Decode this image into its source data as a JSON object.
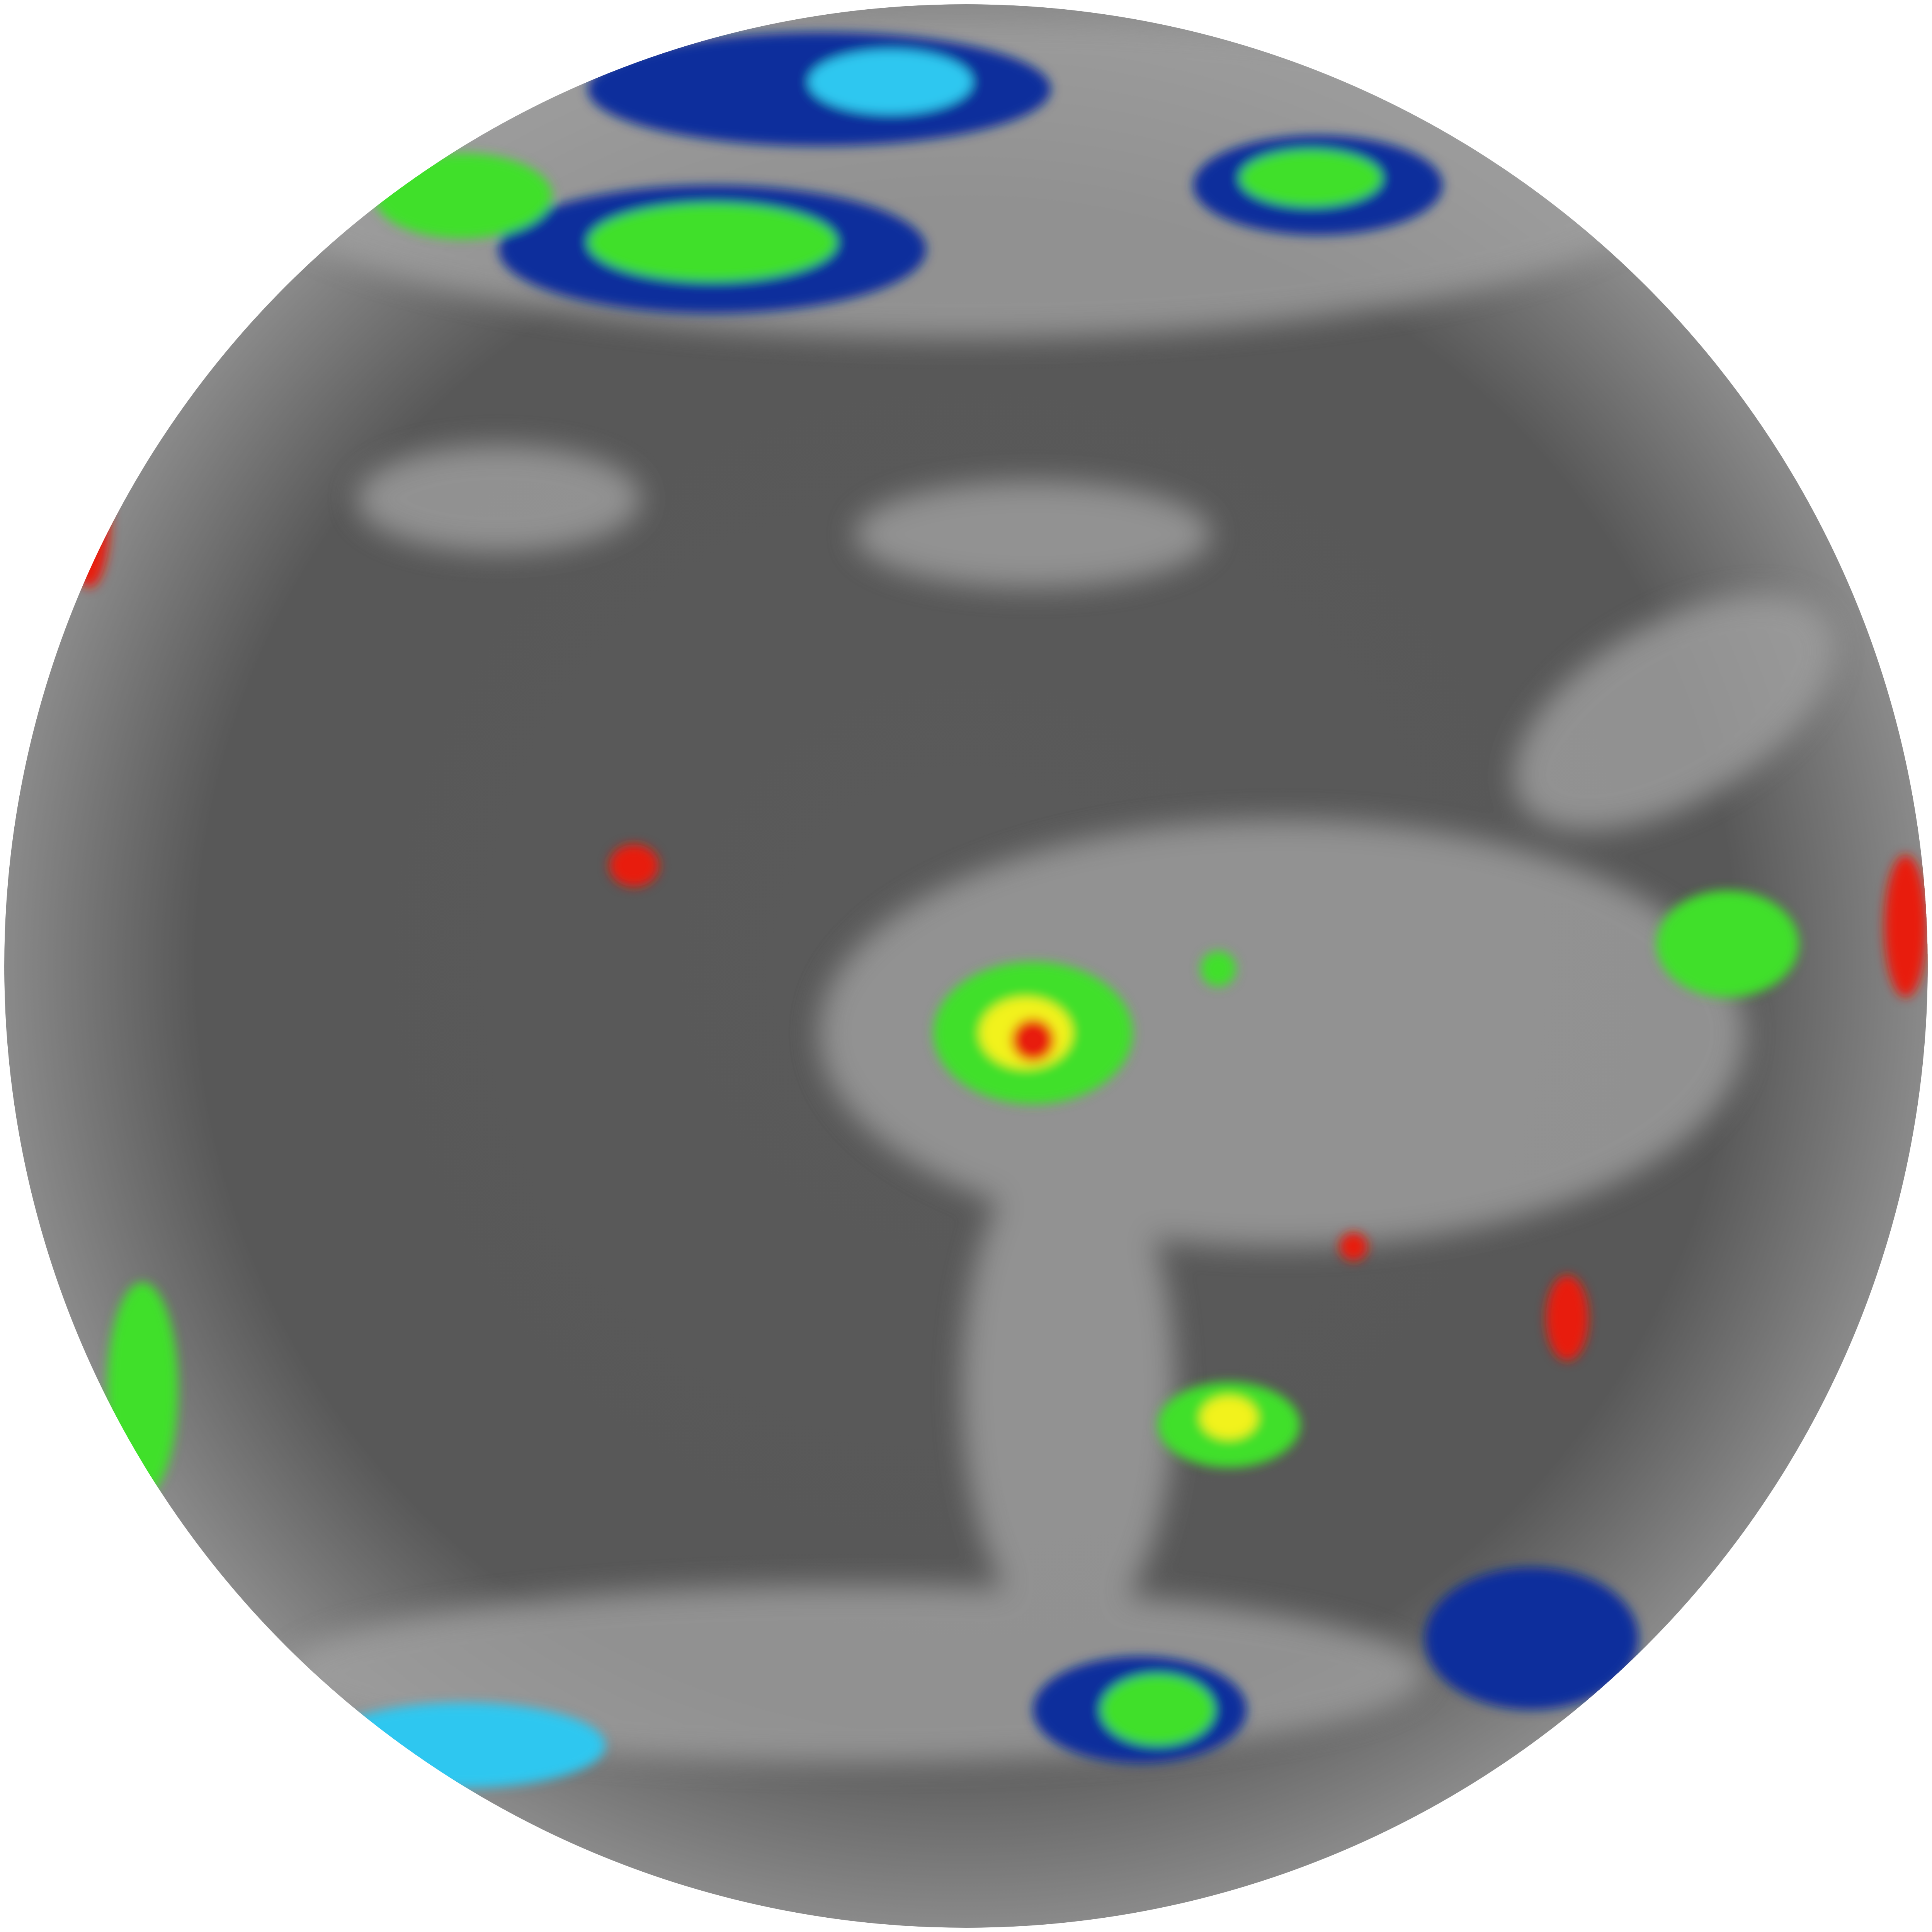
{
  "image": {
    "subject": "full-disk-infrared-satellite-globe",
    "colors": {
      "background": "#ffffff",
      "ocean_dark": "#4a4a4a",
      "cloud_gray": "#9a9a9a",
      "cloud_white": "#d8d8d8",
      "cold_blue": "#0a2f9c",
      "cold_cyan": "#2fc7f0",
      "cold_green": "#3fe02a",
      "cold_yellow": "#f2f21a",
      "cold_red": "#e81a0a",
      "coastline": "#e0e0e0"
    }
  }
}
